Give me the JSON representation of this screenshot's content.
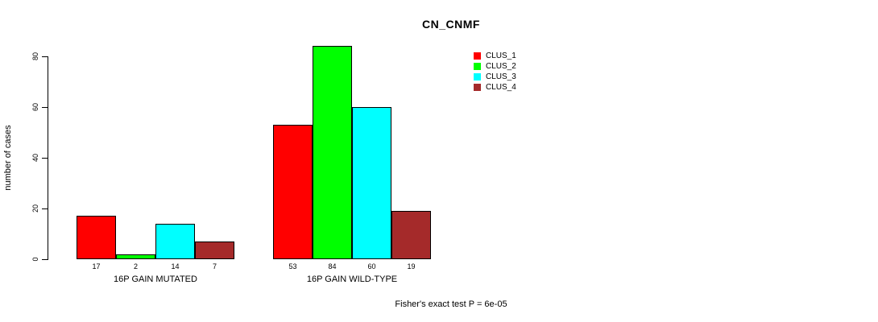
{
  "title": "CN_CNMF",
  "ylabel": "number of cases",
  "footer": "Fisher's exact test P = 6e-05",
  "chart_data": {
    "type": "bar",
    "title": "CN_CNMF",
    "xlabel": "",
    "ylabel": "number of cases",
    "ylim": [
      0,
      80
    ],
    "yticks": [
      0,
      20,
      40,
      60,
      80
    ],
    "grid": false,
    "legend_position": "top-right",
    "categories": [
      "16P GAIN MUTATED",
      "16P GAIN WILD-TYPE"
    ],
    "series": [
      {
        "name": "CLUS_1",
        "color": "#FF0000",
        "values": [
          17,
          53
        ]
      },
      {
        "name": "CLUS_2",
        "color": "#00FF00",
        "values": [
          2,
          84
        ]
      },
      {
        "name": "CLUS_3",
        "color": "#00FFFF",
        "values": [
          14,
          60
        ]
      },
      {
        "name": "CLUS_4",
        "color": "#A52A2A",
        "values": [
          7,
          19
        ]
      }
    ],
    "bar_value_labels": [
      [
        "17",
        "2",
        "14",
        "7"
      ],
      [
        "53",
        "84",
        "60",
        "19"
      ]
    ],
    "annotation": "Fisher's exact test P = 6e-05"
  }
}
